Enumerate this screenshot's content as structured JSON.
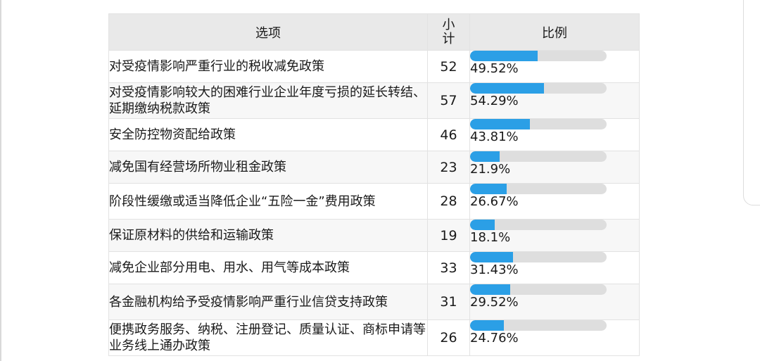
{
  "chart_data": {
    "type": "table",
    "columns": [
      "选项",
      "小计",
      "比例"
    ],
    "rows": [
      {
        "option": "对受疫情影响严重行业的税收减免政策",
        "count": 52,
        "percent": 49.52,
        "percent_label": "49.52%"
      },
      {
        "option": "对受疫情影响较大的困难行业企业年度亏损的延长转结、延期缴纳税款政策",
        "count": 57,
        "percent": 54.29,
        "percent_label": "54.29%"
      },
      {
        "option": "安全防控物资配给政策",
        "count": 46,
        "percent": 43.81,
        "percent_label": "43.81%"
      },
      {
        "option": "减免国有经营场所物业租金政策",
        "count": 23,
        "percent": 21.9,
        "percent_label": "21.9%"
      },
      {
        "option": "阶段性缓缴或适当降低企业“五险一金”费用政策",
        "count": 28,
        "percent": 26.67,
        "percent_label": "26.67%"
      },
      {
        "option": "保证原材料的供给和运输政策",
        "count": 19,
        "percent": 18.1,
        "percent_label": "18.1%"
      },
      {
        "option": "减免企业部分用电、用水、用气等成本政策",
        "count": 33,
        "percent": 31.43,
        "percent_label": "31.43%"
      },
      {
        "option": "各金融机构给予受疫情影响严重行业信贷支持政策",
        "count": 31,
        "percent": 29.52,
        "percent_label": "29.52%"
      },
      {
        "option": "便携政务服务、纳税、注册登记、质量认证、商标申请等业务线上通办政策",
        "count": 26,
        "percent": 24.76,
        "percent_label": "24.76%"
      }
    ],
    "bar_color": "#2b9fe6",
    "track_color": "#dedede"
  }
}
